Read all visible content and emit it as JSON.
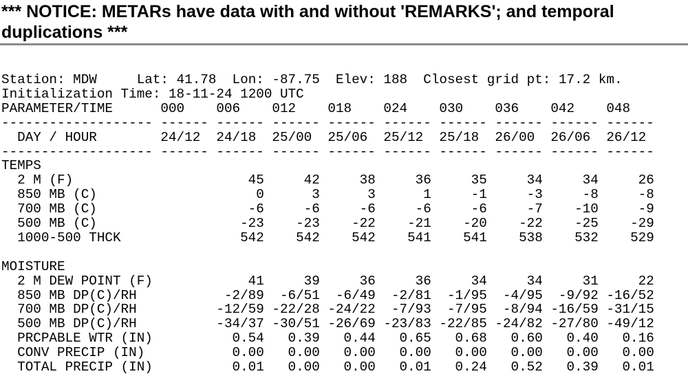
{
  "header": {
    "title": "*** NOTICE: METARs have data with and without 'REMARKS'; and temporal duplications ***"
  },
  "station": {
    "line1": "Station: MDW     Lat: 41.78  Lon: -87.75  Elev: 188  Closest grid pt: 17.2 km.",
    "line2": "Initialization Time: 18-11-24 1200 UTC"
  },
  "table": {
    "rule": {
      "label": "-------------------",
      "column": "------"
    },
    "header_label": "PARAMETER/TIME",
    "times": [
      "000",
      "006",
      "012",
      "018",
      "024",
      "030",
      "036",
      "042",
      "048"
    ],
    "day_label": "DAY / HOUR",
    "days": [
      "24/12",
      "24/18",
      "25/00",
      "25/06",
      "25/12",
      "25/18",
      "26/00",
      "26/06",
      "26/12"
    ],
    "sections": [
      {
        "title": "TEMPS",
        "rows": [
          {
            "label": "2 M (F)",
            "values": [
              null,
              "45",
              "42",
              "38",
              "36",
              "35",
              "34",
              "34",
              "26"
            ]
          },
          {
            "label": "850 MB (C)",
            "values": [
              null,
              "0",
              "3",
              "3",
              "1",
              "-1",
              "-3",
              "-8",
              "-8"
            ]
          },
          {
            "label": "700 MB (C)",
            "values": [
              null,
              "-6",
              "-6",
              "-6",
              "-6",
              "-6",
              "-7",
              "-10",
              "-9"
            ]
          },
          {
            "label": "500 MB (C)",
            "values": [
              null,
              "-23",
              "-23",
              "-22",
              "-21",
              "-20",
              "-22",
              "-25",
              "-29"
            ]
          },
          {
            "label": "1000-500 THCK",
            "values": [
              null,
              "542",
              "542",
              "542",
              "541",
              "541",
              "538",
              "532",
              "529"
            ]
          }
        ]
      },
      {
        "title": "MOISTURE",
        "rows": [
          {
            "label": "2 M DEW POINT (F)",
            "values": [
              null,
              "41",
              "39",
              "36",
              "36",
              "34",
              "34",
              "31",
              "22"
            ]
          },
          {
            "label": "850 MB DP(C)/RH",
            "values": [
              null,
              "-2/89",
              "-6/51",
              "-6/49",
              "-2/81",
              "-1/95",
              "-4/95",
              "-9/92",
              "-16/52"
            ]
          },
          {
            "label": "700 MB DP(C)/RH",
            "values": [
              null,
              "-12/59",
              "-22/28",
              "-24/22",
              "-7/93",
              "-7/95",
              "-8/94",
              "-16/59",
              "-31/15"
            ]
          },
          {
            "label": "500 MB DP(C)/RH",
            "values": [
              null,
              "-34/37",
              "-30/51",
              "-26/69",
              "-23/83",
              "-22/85",
              "-24/82",
              "-27/80",
              "-49/12"
            ]
          },
          {
            "label": "PRCPABLE WTR (IN)",
            "values": [
              null,
              "0.54",
              "0.39",
              "0.44",
              "0.65",
              "0.68",
              "0.60",
              "0.40",
              "0.16"
            ]
          },
          {
            "label": "CONV PRECIP (IN)",
            "values": [
              null,
              "0.00",
              "0.00",
              "0.00",
              "0.00",
              "0.00",
              "0.00",
              "0.00",
              "0.00"
            ]
          },
          {
            "label": "TOTAL PRECIP (IN)",
            "values": [
              null,
              "0.01",
              "0.00",
              "0.00",
              "0.01",
              "0.24",
              "0.52",
              "0.39",
              "0.01"
            ]
          }
        ]
      }
    ]
  }
}
